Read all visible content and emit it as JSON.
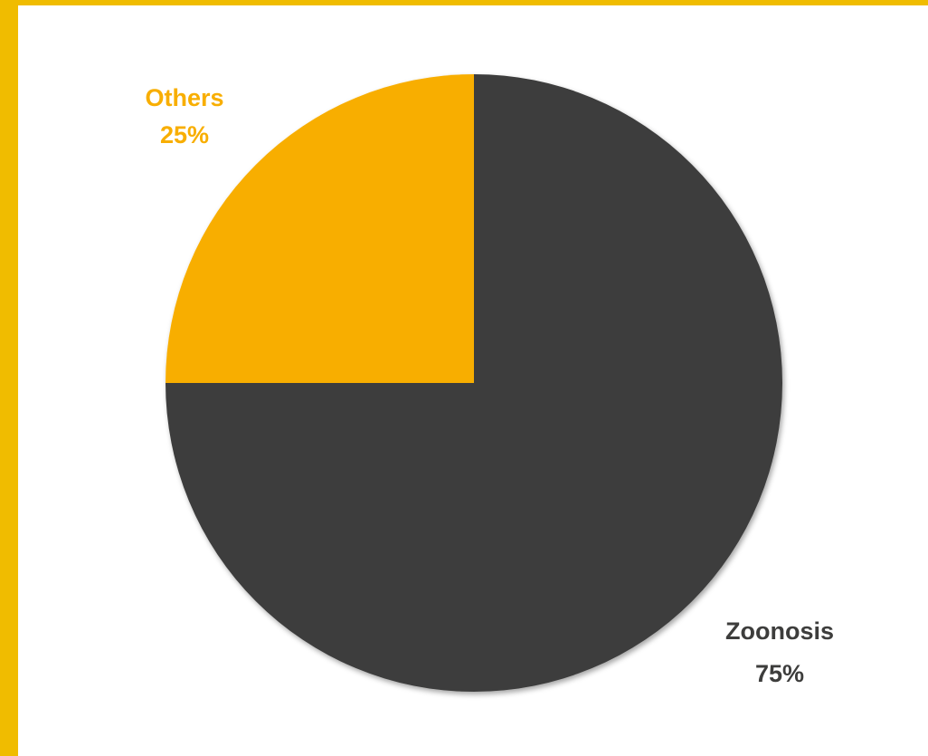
{
  "chart_data": {
    "type": "pie",
    "categories": [
      "Others",
      "Zoonosis"
    ],
    "values": [
      25,
      75
    ],
    "labels": [
      "Others",
      "Zoonosis"
    ],
    "value_labels": [
      "25%",
      "75%"
    ],
    "colors": [
      "#f8ae00",
      "#3d3d3c"
    ],
    "label_colors": [
      "#f8ae00",
      "#3d3d3c"
    ],
    "start_angle_deg": -90,
    "direction": "counterclockwise",
    "title": "",
    "legend": "none"
  },
  "frame": {
    "accent_color": "#f0bc00"
  }
}
